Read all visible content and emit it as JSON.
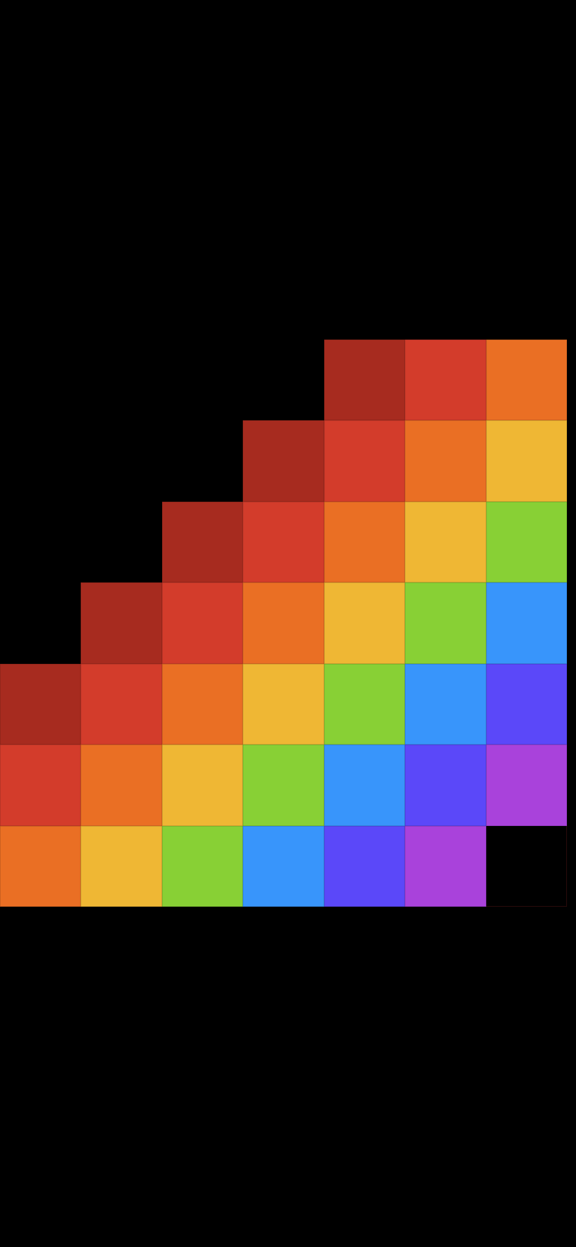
{
  "palette": [
    "#A72B1F",
    "#D33C2B",
    "#EA6F24",
    "#EFB734",
    "#88D035",
    "#3895FB",
    "#5B48F9",
    "#A942DB"
  ],
  "grid": [
    [
      null,
      null,
      null,
      null,
      0,
      1,
      2
    ],
    [
      null,
      null,
      null,
      0,
      1,
      2,
      3
    ],
    [
      null,
      null,
      0,
      1,
      2,
      3,
      4
    ],
    [
      null,
      0,
      1,
      2,
      3,
      4,
      5
    ],
    [
      0,
      1,
      2,
      3,
      4,
      5,
      6
    ],
    [
      1,
      2,
      3,
      4,
      5,
      6,
      7
    ],
    [
      2,
      3,
      4,
      5,
      6,
      7,
      "empty"
    ]
  ]
}
